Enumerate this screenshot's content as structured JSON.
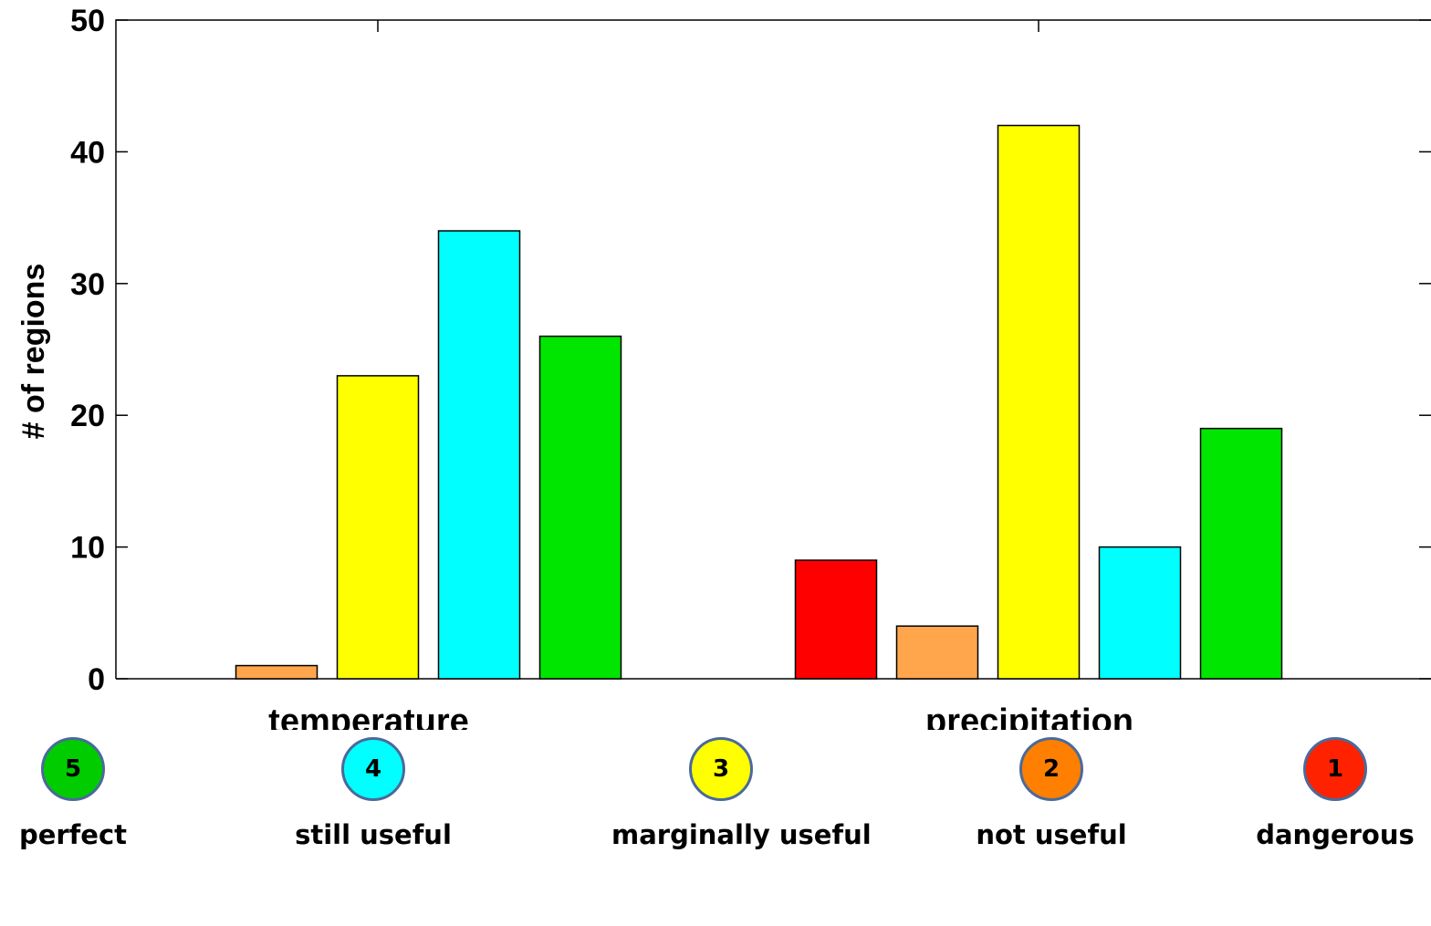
{
  "chart_data": {
    "type": "bar",
    "categories": [
      "temperature",
      "precipitation"
    ],
    "ylabel": "# of regions",
    "ylim": [
      0,
      50
    ],
    "yticks": [
      0,
      10,
      20,
      30,
      40,
      50
    ],
    "grid": false,
    "series": [
      {
        "color": "#ff0000",
        "values": [
          0,
          9
        ]
      },
      {
        "color": "#ffa64d",
        "values": [
          1,
          4
        ]
      },
      {
        "color": "#ffff00",
        "values": [
          23,
          42
        ]
      },
      {
        "color": "#00ffff",
        "values": [
          34,
          10
        ]
      },
      {
        "color": "#00e600",
        "values": [
          26,
          19
        ]
      }
    ]
  },
  "legend": [
    {
      "number": "5",
      "label": "perfect",
      "color": "#00cc00"
    },
    {
      "number": "4",
      "label": "still useful",
      "color": "#00ffff"
    },
    {
      "number": "3",
      "label": "marginally useful",
      "color": "#ffff00"
    },
    {
      "number": "2",
      "label": "not useful",
      "color": "#ff7f00"
    },
    {
      "number": "1",
      "label": "dangerous",
      "color": "#ff2200"
    }
  ]
}
